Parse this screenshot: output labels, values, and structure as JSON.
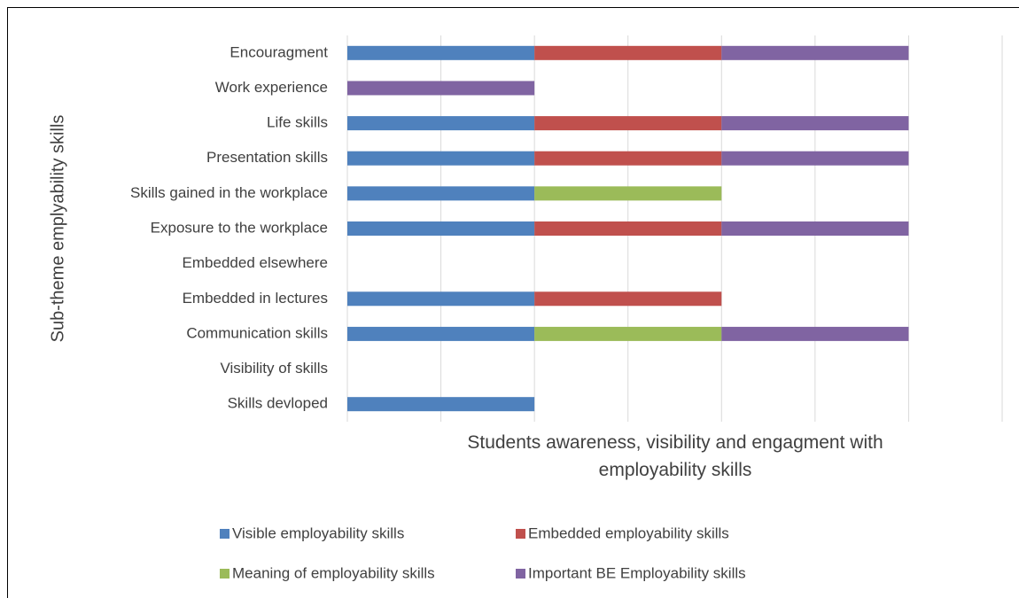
{
  "chart_data": {
    "type": "stacked-bar-horizontal",
    "y_axis_label": "Sub-theme emplyability skills",
    "x_axis_label": "Students awareness, visibility and engagment with employability skills",
    "categories": [
      "Encouragment",
      "Work experience",
      "Life skills",
      "Presentation skills",
      "Skills gained in the workplace",
      "Exposure to the workplace",
      "Embedded elsewhere",
      "Embedded in lectures",
      "Communication skills",
      "Visibility of skills",
      "Skills devloped"
    ],
    "series": [
      {
        "name": "Visible employability skills",
        "color": "#4f81bd",
        "values": [
          1,
          0,
          1,
          1,
          1,
          1,
          0,
          1,
          1,
          0,
          1
        ]
      },
      {
        "name": "Embedded employability skills",
        "color": "#c0504d",
        "values": [
          1,
          0,
          1,
          1,
          0,
          1,
          0,
          1,
          0,
          0,
          0
        ]
      },
      {
        "name": "Meaning of employability skills",
        "color": "#9bbb59",
        "values": [
          0,
          0,
          0,
          0,
          1,
          0,
          0,
          0,
          1,
          0,
          0
        ]
      },
      {
        "name": "Important BE Employability skills",
        "color": "#8064a2",
        "values": [
          1,
          1,
          1,
          1,
          0,
          1,
          0,
          0,
          1,
          0,
          0
        ]
      }
    ],
    "xlim": [
      0,
      3.5
    ],
    "xticks": [
      0,
      0.5,
      1,
      1.5,
      2,
      2.5,
      3,
      3.5
    ],
    "grid": true,
    "legend": "bottom"
  }
}
